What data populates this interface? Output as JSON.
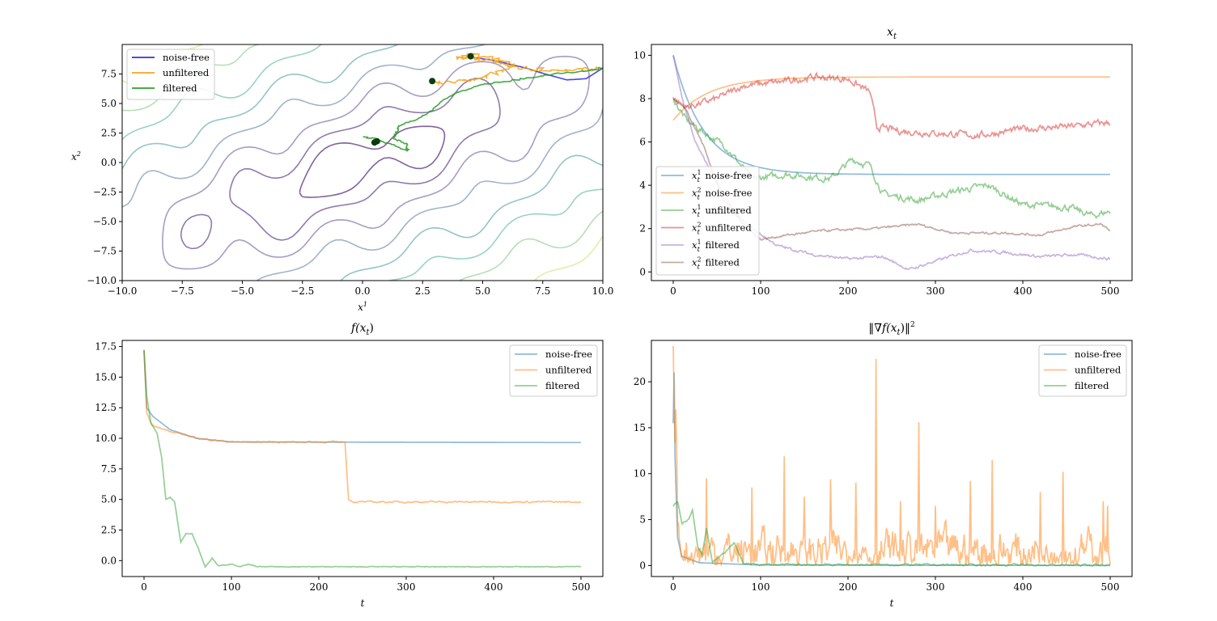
{
  "chart_data": [
    {
      "id": "contour",
      "type": "contour",
      "title": "",
      "xlabel": "x",
      "xlabel_sup": "1",
      "ylabel": "x",
      "ylabel_sup": "2",
      "xlim": [
        -10,
        10
      ],
      "ylim": [
        -10,
        10
      ],
      "xticks": [
        -10.0,
        -7.5,
        -5.0,
        -2.5,
        0.0,
        2.5,
        5.0,
        7.5,
        10.0
      ],
      "xtick_labels": [
        "−10.0",
        "−7.5",
        "−5.0",
        "−2.5",
        "0.0",
        "2.5",
        "5.0",
        "7.5",
        "10.0"
      ],
      "yticks": [
        -10.0,
        -7.5,
        -5.0,
        -2.5,
        0.0,
        2.5,
        5.0,
        7.5
      ],
      "ytick_labels": [
        "−10.0",
        "−7.5",
        "−5.0",
        "−2.5",
        "0.0",
        "2.5",
        "5.0",
        "7.5"
      ],
      "legend": [
        {
          "label": "noise-free",
          "color": "#3333dd"
        },
        {
          "label": "unfiltered",
          "color": "#f5a623"
        },
        {
          "label": "filtered",
          "color": "#2ca02c"
        }
      ],
      "contour_levels": [
        0.8,
        1.5,
        2.3,
        3.2,
        4.2,
        5.2,
        6.3,
        7.4
      ],
      "contour_colors": [
        "#5a2e7a",
        "#6a4c93",
        "#8a7bb0",
        "#7f9bb8",
        "#6fb0b5",
        "#78c3b0",
        "#9cd49c",
        "#d7e88a"
      ],
      "paths": {
        "noise_free": [
          [
            10,
            8
          ],
          [
            9.3,
            7.1
          ],
          [
            8.5,
            7.0
          ],
          [
            7.6,
            7.5
          ],
          [
            6.8,
            8.0
          ],
          [
            6.0,
            8.4
          ],
          [
            5.3,
            8.7
          ],
          [
            4.6,
            8.9
          ],
          [
            4.5,
            9.0
          ]
        ],
        "unfiltered_a": [
          [
            10,
            8
          ],
          [
            8.8,
            7.8
          ],
          [
            7.6,
            7.8
          ],
          [
            6.6,
            8.0
          ],
          [
            5.8,
            8.4
          ],
          [
            5.1,
            8.7
          ],
          [
            4.5,
            8.9
          ],
          [
            4.0,
            8.9
          ],
          [
            4.6,
            9.1
          ],
          [
            5.3,
            8.8
          ],
          [
            6.2,
            8.3
          ],
          [
            5.8,
            7.8
          ],
          [
            5.0,
            7.2
          ],
          [
            4.0,
            6.9
          ],
          [
            3.2,
            6.8
          ],
          [
            2.8,
            6.8
          ]
        ],
        "filtered": [
          [
            10,
            8
          ],
          [
            9.0,
            7.7
          ],
          [
            8.0,
            7.5
          ],
          [
            7.0,
            7.2
          ],
          [
            6.0,
            6.9
          ],
          [
            5.0,
            6.6
          ],
          [
            4.0,
            6.0
          ],
          [
            3.3,
            5.2
          ],
          [
            2.8,
            4.3
          ],
          [
            2.2,
            3.6
          ],
          [
            1.5,
            3.1
          ],
          [
            1.4,
            2.6
          ],
          [
            1.3,
            2.0
          ],
          [
            1.8,
            1.6
          ],
          [
            1.9,
            1.0
          ],
          [
            1.2,
            1.5
          ],
          [
            0.6,
            2.0
          ],
          [
            0.0,
            2.2
          ]
        ]
      },
      "markers": [
        [
          4.5,
          9.0
        ],
        [
          2.9,
          6.9
        ],
        [
          0.6,
          1.8
        ],
        [
          0.5,
          1.7
        ]
      ]
    },
    {
      "id": "xt",
      "type": "line",
      "title": "x",
      "title_sub": "t",
      "xlim": [
        -25,
        525
      ],
      "ylim": [
        -0.4,
        10.5
      ],
      "xticks": [
        0,
        100,
        200,
        300,
        400,
        500
      ],
      "yticks": [
        0,
        2,
        4,
        6,
        8,
        10
      ],
      "series": [
        {
          "name": "noise-free",
          "sup": "1",
          "color": "#1f77b4",
          "start": 10.0,
          "end": 4.5,
          "tau": 35,
          "noise": 0.0
        },
        {
          "name": "noise-free",
          "sup": "2",
          "color": "#ff7f0e",
          "start": 7.0,
          "end": 9.0,
          "tau": 40,
          "noise": 0.0
        },
        {
          "name": "unfiltered",
          "sup": "1",
          "color": "#2ca02c",
          "keys": [
            [
              0,
              8.0
            ],
            [
              15,
              7.0
            ],
            [
              40,
              6.3
            ],
            [
              60,
              5.8
            ],
            [
              90,
              4.3
            ],
            [
              130,
              4.5
            ],
            [
              180,
              4.3
            ],
            [
              205,
              5.2
            ],
            [
              225,
              4.9
            ],
            [
              240,
              3.6
            ],
            [
              280,
              3.3
            ],
            [
              320,
              3.7
            ],
            [
              360,
              4.0
            ],
            [
              400,
              3.1
            ],
            [
              450,
              3.0
            ],
            [
              480,
              2.6
            ],
            [
              500,
              2.8
            ]
          ],
          "noise": 0.12
        },
        {
          "name": "unfiltered",
          "sup": "2",
          "color": "#d62728",
          "keys": [
            [
              0,
              8.0
            ],
            [
              15,
              7.6
            ],
            [
              50,
              8.0
            ],
            [
              80,
              8.6
            ],
            [
              130,
              8.8
            ],
            [
              160,
              9.0
            ],
            [
              200,
              8.9
            ],
            [
              225,
              8.3
            ],
            [
              233,
              6.7
            ],
            [
              260,
              6.5
            ],
            [
              300,
              6.4
            ],
            [
              350,
              6.3
            ],
            [
              400,
              6.6
            ],
            [
              450,
              6.7
            ],
            [
              500,
              6.9
            ]
          ],
          "noise": 0.12
        },
        {
          "name": "filtered",
          "sup": "1",
          "color": "#9467bd",
          "keys": [
            [
              0,
              10.0
            ],
            [
              10,
              8.0
            ],
            [
              25,
              6.0
            ],
            [
              45,
              4.5
            ],
            [
              70,
              2.7
            ],
            [
              90,
              2.0
            ],
            [
              120,
              1.2
            ],
            [
              160,
              0.8
            ],
            [
              200,
              0.6
            ],
            [
              240,
              0.7
            ],
            [
              270,
              0.1
            ],
            [
              300,
              0.5
            ],
            [
              340,
              1.0
            ],
            [
              380,
              0.9
            ],
            [
              420,
              0.7
            ],
            [
              460,
              0.8
            ],
            [
              500,
              0.6
            ]
          ],
          "noise": 0.05
        },
        {
          "name": "filtered",
          "sup": "2",
          "color": "#8c564b",
          "keys": [
            [
              0,
              8.0
            ],
            [
              15,
              7.5
            ],
            [
              35,
              5.8
            ],
            [
              55,
              3.5
            ],
            [
              80,
              2.2
            ],
            [
              100,
              1.5
            ],
            [
              130,
              1.7
            ],
            [
              170,
              1.9
            ],
            [
              230,
              2.0
            ],
            [
              280,
              2.2
            ],
            [
              320,
              1.8
            ],
            [
              380,
              1.8
            ],
            [
              420,
              1.7
            ],
            [
              460,
              2.1
            ],
            [
              490,
              2.2
            ],
            [
              500,
              1.9
            ]
          ],
          "noise": 0.04
        }
      ],
      "legend_labels": [
        "noise-free",
        "noise-free",
        "unfiltered",
        "unfiltered",
        "filtered",
        "filtered"
      ]
    },
    {
      "id": "fx",
      "type": "line",
      "title": "f(x",
      "title_sub": "t",
      "title_end": ")",
      "xlabel": "t",
      "xlim": [
        -25,
        525
      ],
      "ylim": [
        -1.3,
        18.0
      ],
      "xticks": [
        0,
        100,
        200,
        300,
        400,
        500
      ],
      "yticks": [
        0.0,
        2.5,
        5.0,
        7.5,
        10.0,
        12.5,
        15.0,
        17.5
      ],
      "ytick_labels": [
        "0.0",
        "2.5",
        "5.0",
        "7.5",
        "10.0",
        "12.5",
        "15.0",
        "17.5"
      ],
      "series": [
        {
          "name": "noise-free",
          "color": "#1f77b4",
          "keys": [
            [
              0,
              17.2
            ],
            [
              3,
              12.5
            ],
            [
              10,
              11.8
            ],
            [
              30,
              10.7
            ],
            [
              60,
              10.0
            ],
            [
              100,
              9.7
            ],
            [
              500,
              9.65
            ]
          ],
          "noise": 0.0
        },
        {
          "name": "unfiltered",
          "color": "#ff7f0e",
          "keys": [
            [
              0,
              17.2
            ],
            [
              3,
              12.0
            ],
            [
              10,
              11.0
            ],
            [
              30,
              10.6
            ],
            [
              60,
              10.0
            ],
            [
              100,
              9.7
            ],
            [
              230,
              9.7
            ],
            [
              234,
              5.0
            ],
            [
              240,
              4.8
            ],
            [
              500,
              4.8
            ]
          ],
          "noise": 0.05
        },
        {
          "name": "filtered",
          "color": "#2ca02c",
          "keys": [
            [
              0,
              17.2
            ],
            [
              3,
              13.5
            ],
            [
              8,
              11.2
            ],
            [
              15,
              10.4
            ],
            [
              20,
              8.5
            ],
            [
              25,
              5.0
            ],
            [
              30,
              5.2
            ],
            [
              35,
              4.8
            ],
            [
              42,
              1.5
            ],
            [
              48,
              2.2
            ],
            [
              55,
              2.2
            ],
            [
              62,
              1.0
            ],
            [
              70,
              -0.5
            ],
            [
              78,
              0.2
            ],
            [
              85,
              -0.4
            ],
            [
              100,
              -0.3
            ],
            [
              110,
              -0.5
            ],
            [
              120,
              -0.3
            ],
            [
              130,
              -0.5
            ],
            [
              500,
              -0.5
            ]
          ],
          "noise": 0.02
        }
      ]
    },
    {
      "id": "grad",
      "type": "line",
      "title": "‖∇f(x",
      "title_sub": "t",
      "title_end": ")‖",
      "title_sup": "2",
      "xlabel": "t",
      "xlim": [
        -25,
        525
      ],
      "ylim": [
        -1.2,
        24.5
      ],
      "xticks": [
        0,
        100,
        200,
        300,
        400,
        500
      ],
      "yticks": [
        0,
        5,
        10,
        15,
        20
      ],
      "series": [
        {
          "name": "noise-free",
          "color": "#1f77b4",
          "keys": [
            [
              0,
              15.5
            ],
            [
              1,
              21.0
            ],
            [
              2,
              12.0
            ],
            [
              5,
              3.0
            ],
            [
              10,
              1.0
            ],
            [
              30,
              0.3
            ],
            [
              100,
              0.05
            ],
            [
              500,
              0.0
            ]
          ],
          "noise": 0.0
        },
        {
          "name": "unfiltered",
          "color": "#ff7f0e",
          "keys": [
            [
              0,
              23.5
            ],
            [
              1,
              18.0
            ],
            [
              2,
              12.0
            ],
            [
              3,
              17.0
            ],
            [
              5,
              5.0
            ],
            [
              10,
              1.5
            ],
            [
              500,
              1.5
            ]
          ],
          "noise": 1.8,
          "spikes": [
            [
              232,
              22.5
            ],
            [
              281,
              15.6
            ],
            [
              127,
              11.9
            ],
            [
              365,
              11.5
            ],
            [
              446,
              10.2
            ],
            [
              38,
              9.5
            ],
            [
              180,
              9.4
            ],
            [
              209,
              9.0
            ],
            [
              497,
              6.5
            ],
            [
              492,
              7.0
            ],
            [
              340,
              9.2
            ],
            [
              420,
              8.0
            ],
            [
              300,
              6.5
            ],
            [
              260,
              7.0
            ],
            [
              150,
              7.5
            ],
            [
              90,
              8.5
            ]
          ]
        },
        {
          "name": "filtered",
          "color": "#2ca02c",
          "keys": [
            [
              0,
              6.5
            ],
            [
              5,
              7.0
            ],
            [
              10,
              4.5
            ],
            [
              18,
              5.0
            ],
            [
              22,
              6.0
            ],
            [
              28,
              2.0
            ],
            [
              33,
              1.2
            ],
            [
              38,
              4.0
            ],
            [
              45,
              0.3
            ],
            [
              60,
              1.5
            ],
            [
              70,
              2.5
            ],
            [
              80,
              0.2
            ],
            [
              100,
              0.1
            ],
            [
              500,
              0.05
            ]
          ],
          "noise": 0.08
        }
      ]
    }
  ]
}
